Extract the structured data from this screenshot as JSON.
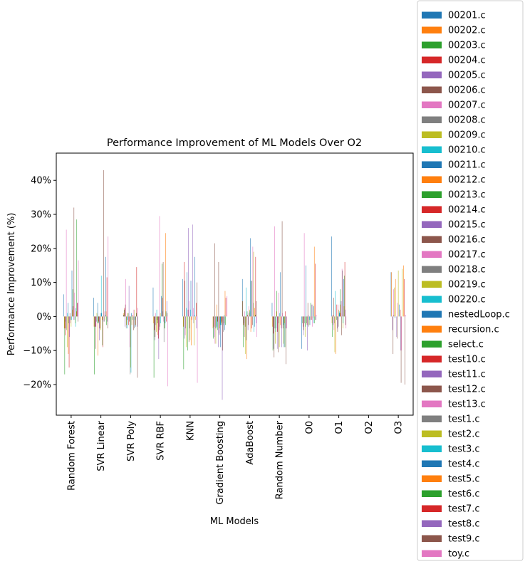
{
  "chart_data": {
    "type": "bar",
    "title": "Performance Improvement of ML Models Over O2",
    "xlabel": "ML Models",
    "ylabel": "Performance Improvement (%)",
    "ylim": [
      -29,
      48
    ],
    "yticks": [
      -20,
      -10,
      0,
      10,
      20,
      30,
      40
    ],
    "ytick_labels": [
      "−20%",
      "−10%",
      "0%",
      "10%",
      "20%",
      "30%",
      "40%"
    ],
    "grid": false,
    "legend_position": "right",
    "categories": [
      "Random Forest",
      "SVR Linear",
      "SVR Poly",
      "SVR RBF",
      "KNN",
      "Gradient Boosting",
      "AdaBoost",
      "Random Number",
      "O0",
      "O1",
      "O2",
      "O3"
    ],
    "series": [
      {
        "name": "00201.c",
        "color": "#1f77b4",
        "values": [
          6.5,
          5.5,
          0.5,
          8.5,
          11,
          0,
          11,
          4,
          -9.5,
          23.5,
          0,
          13
        ]
      },
      {
        "name": "00202.c",
        "color": "#ff7f0e",
        "values": [
          -3.5,
          -3,
          1,
          -2,
          -3,
          -3.5,
          4.5,
          -3,
          0,
          -2,
          0,
          13
        ]
      },
      {
        "name": "00203.c",
        "color": "#2ca02c",
        "values": [
          -17,
          -17,
          2,
          -18,
          -15.5,
          -6.5,
          -9,
          -10,
          -2,
          -6,
          0,
          0
        ]
      },
      {
        "name": "00204.c",
        "color": "#d62728",
        "values": [
          -5.5,
          -3,
          2.5,
          -4,
          16,
          -3,
          -2.5,
          -5,
          -3,
          0.5,
          0,
          0
        ]
      },
      {
        "name": "00205.c",
        "color": "#9467bd",
        "values": [
          -1.5,
          -3,
          -3,
          -7,
          -6.5,
          -6,
          -2,
          -9.5,
          -5.5,
          -2.5,
          0,
          -4
        ]
      },
      {
        "name": "00206.c",
        "color": "#8c564b",
        "values": [
          -3.5,
          -9.5,
          3.5,
          -6,
          10.5,
          21.5,
          -6,
          -12,
          -4,
          5.5,
          0,
          -11
        ]
      },
      {
        "name": "00207.c",
        "color": "#e377c2",
        "values": [
          25.5,
          -3,
          11,
          1,
          -5.5,
          -8,
          1.5,
          26.5,
          24.5,
          -4,
          0,
          8
        ]
      },
      {
        "name": "00208.c",
        "color": "#7f7f7f",
        "values": [
          -4,
          -1.5,
          -3.5,
          -2.5,
          -3.5,
          -3.5,
          -3,
          -3.5,
          -2,
          -2,
          0,
          0.5
        ]
      },
      {
        "name": "00209.c",
        "color": "#bcbd22",
        "values": [
          -9,
          1,
          -2.5,
          -4.5,
          -9,
          -8,
          -11,
          -8,
          -6,
          -10.5,
          0,
          8.5
        ]
      },
      {
        "name": "00210.c",
        "color": "#17becf",
        "values": [
          1,
          -2,
          -3.5,
          2,
          2.5,
          -3.5,
          8.5,
          -4.5,
          -3,
          7.5,
          0,
          0
        ]
      },
      {
        "name": "00211.c",
        "color": "#1f77b4",
        "values": [
          4,
          4,
          -1,
          -1,
          13,
          -3,
          -7,
          -3.5,
          15,
          0,
          0,
          -0.5
        ]
      },
      {
        "name": "00212.c",
        "color": "#ff7f0e",
        "values": [
          -11,
          -11.5,
          1,
          -5.5,
          0,
          3.5,
          -12.5,
          1.5,
          0,
          -11,
          0,
          11
        ]
      },
      {
        "name": "00213.c",
        "color": "#2ca02c",
        "values": [
          -2,
          -2,
          1,
          -2,
          -10,
          -4,
          1.5,
          7.5,
          -2,
          -1,
          0,
          0
        ]
      },
      {
        "name": "00214.c",
        "color": "#d62728",
        "values": [
          -15,
          -1.5,
          -2.5,
          -6.5,
          2,
          -1.5,
          0.5,
          -4.5,
          -2.5,
          3.5,
          0,
          0
        ]
      },
      {
        "name": "00215.c",
        "color": "#9467bd",
        "values": [
          -6,
          -7,
          9,
          -12.5,
          26,
          -9,
          -4,
          -9.5,
          -10,
          -3.5,
          0,
          -6
        ]
      },
      {
        "name": "00216.c",
        "color": "#8c564b",
        "values": [
          1,
          -3.5,
          -1.5,
          -4,
          -7.5,
          16,
          -2.5,
          -10.5,
          4,
          -4.5,
          0,
          -6.5
        ]
      },
      {
        "name": "00217.c",
        "color": "#e377c2",
        "values": [
          -2,
          -3.5,
          -9,
          29.5,
          4.5,
          -5,
          3,
          7,
          0.5,
          3.5,
          0,
          4
        ]
      },
      {
        "name": "00218.c",
        "color": "#7f7f7f",
        "values": [
          -1,
          1,
          -17,
          -3,
          -3.5,
          -5.5,
          1,
          -2,
          -3,
          -3,
          0,
          0
        ]
      },
      {
        "name": "00219.c",
        "color": "#bcbd22",
        "values": [
          -3,
          -4,
          -15,
          1,
          -7,
          -3.5,
          2,
          -9,
          -2.5,
          2,
          0,
          13.5
        ]
      },
      {
        "name": "00220.c",
        "color": "#17becf",
        "values": [
          -1,
          12,
          -16.5,
          -2,
          2,
          -2.5,
          1.5,
          1,
          -1,
          1.5,
          0,
          0
        ]
      },
      {
        "name": "nestedLoop.c",
        "color": "#1f77b4",
        "values": [
          13.5,
          1,
          1,
          6,
          10.5,
          -9,
          23,
          13,
          -2.5,
          1,
          0,
          3.5
        ]
      },
      {
        "name": "recursion.c",
        "color": "#ff7f0e",
        "values": [
          2,
          -1,
          -2.5,
          0,
          -8.5,
          -2,
          -4.5,
          -2.5,
          0,
          3.5,
          0,
          0
        ]
      },
      {
        "name": "select.c",
        "color": "#2ca02c",
        "values": [
          8,
          -8.5,
          -1,
          15.5,
          0,
          -2.5,
          10.5,
          0,
          4,
          8,
          0,
          0
        ]
      },
      {
        "name": "test10.c",
        "color": "#d62728",
        "values": [
          3,
          -9,
          0.5,
          5.5,
          -1,
          -1.5,
          -3.5,
          -3.5,
          -1,
          1,
          0,
          2
        ]
      },
      {
        "name": "test11.c",
        "color": "#9467bd",
        "values": [
          -1,
          -1.5,
          0,
          1.5,
          27,
          -24.5,
          10.5,
          -9,
          3.5,
          4.5,
          0,
          -10
        ]
      },
      {
        "name": "test12.c",
        "color": "#8c564b",
        "values": [
          32,
          43,
          -4,
          16,
          0,
          -10,
          -2.5,
          28,
          -1,
          -5.5,
          0,
          -19.5
        ]
      },
      {
        "name": "test13.c",
        "color": "#e377c2",
        "values": [
          7,
          1.5,
          2,
          -1.5,
          2.5,
          -2.5,
          20.5,
          1,
          -3,
          14,
          0,
          -10
        ]
      },
      {
        "name": "test1.c",
        "color": "#7f7f7f",
        "values": [
          -1,
          -1.5,
          -3.5,
          -7.5,
          -2,
          -4.5,
          4,
          -3.5,
          3.5,
          13.5,
          0,
          0
        ]
      },
      {
        "name": "test2.c",
        "color": "#bcbd22",
        "values": [
          -2,
          -1,
          2,
          -3.5,
          -8.5,
          -2,
          19,
          -8,
          -0.5,
          -3.5,
          0,
          14
        ]
      },
      {
        "name": "test3.c",
        "color": "#17becf",
        "values": [
          -3,
          0.5,
          -1,
          -3.5,
          0.5,
          0.5,
          -4.5,
          -2.5,
          -2,
          -2,
          0,
          0
        ]
      },
      {
        "name": "test4.c",
        "color": "#1f77b4",
        "values": [
          2.5,
          17.5,
          -3,
          -2,
          17.5,
          -4,
          -3,
          -9,
          3,
          11,
          0,
          0
        ]
      },
      {
        "name": "test5.c",
        "color": "#ff7f0e",
        "values": [
          1.5,
          1.5,
          -2.5,
          24.5,
          -1,
          7.5,
          2.5,
          -2,
          20.5,
          3,
          0,
          15
        ]
      },
      {
        "name": "test6.c",
        "color": "#2ca02c",
        "values": [
          28.5,
          -2.5,
          1,
          1.5,
          0,
          -2.5,
          0.5,
          -9,
          -2,
          12,
          0,
          0
        ]
      },
      {
        "name": "test7.c",
        "color": "#d62728",
        "values": [
          4,
          11.5,
          14.5,
          -1.5,
          4,
          5.5,
          17.5,
          1.5,
          15.5,
          16,
          0,
          11
        ]
      },
      {
        "name": "test8.c",
        "color": "#9467bd",
        "values": [
          4,
          -1.5,
          -3,
          4.5,
          -3.5,
          0,
          -2,
          -3.5,
          -1,
          2,
          0,
          0
        ]
      },
      {
        "name": "test9.c",
        "color": "#8c564b",
        "values": [
          -1.5,
          -3.5,
          -18,
          1,
          10,
          0,
          4.5,
          -14,
          -1,
          -2.5,
          0,
          -20
        ]
      },
      {
        "name": "toy.c",
        "color": "#e377c2",
        "values": [
          16.5,
          23.5,
          2.5,
          -20.5,
          -19.5,
          6,
          -6,
          -3.5,
          0.5,
          -3.5,
          0,
          0.5
        ]
      }
    ]
  }
}
